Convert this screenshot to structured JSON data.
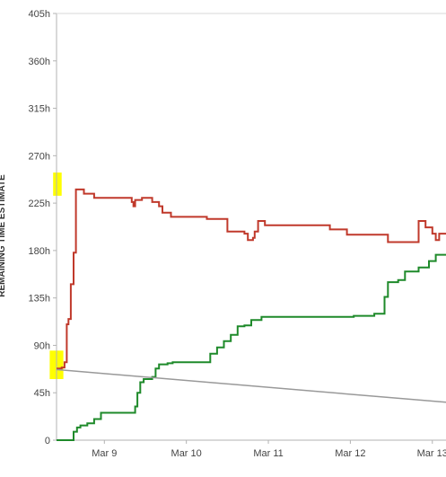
{
  "chart_data": {
    "type": "line",
    "title": "",
    "xlabel": "",
    "ylabel": "REMAINING TIME ESTIMATE",
    "ylim": [
      0,
      405
    ],
    "xlim": [
      "2024-03-08 10:00",
      "2024-03-13 04:00"
    ],
    "y_ticks": [
      0,
      45,
      90,
      135,
      180,
      225,
      270,
      315,
      360,
      405
    ],
    "y_tick_labels": [
      "0",
      "45h",
      "90h",
      "135h",
      "180h",
      "225h",
      "270h",
      "315h",
      "360h",
      "405h"
    ],
    "x_ticks": [
      "2024-03-09 00:00",
      "2024-03-10 00:00",
      "2024-03-11 00:00",
      "2024-03-12 00:00",
      "2024-03-13 00:00"
    ],
    "x_tick_labels": [
      "Mar 9",
      "Mar 10",
      "Mar 11",
      "Mar 12",
      "Mar 13"
    ],
    "grid": false,
    "legend": "none",
    "series": [
      {
        "color": "#c0392b",
        "points": [
          [
            "2024-03-08 10:00",
            68
          ],
          [
            "2024-03-08 11:30",
            69
          ],
          [
            "2024-03-08 12:20",
            74
          ],
          [
            "2024-03-08 13:00",
            110
          ],
          [
            "2024-03-08 13:30",
            115
          ],
          [
            "2024-03-08 14:10",
            148
          ],
          [
            "2024-03-08 15:00",
            178
          ],
          [
            "2024-03-08 15:40",
            238
          ],
          [
            "2024-03-08 18:00",
            234
          ],
          [
            "2024-03-08 21:00",
            230
          ],
          [
            "2024-03-09 07:00",
            230
          ],
          [
            "2024-03-09 08:00",
            226
          ],
          [
            "2024-03-09 08:30",
            222
          ],
          [
            "2024-03-09 09:00",
            228
          ],
          [
            "2024-03-09 11:00",
            230
          ],
          [
            "2024-03-09 14:00",
            226
          ],
          [
            "2024-03-09 16:00",
            222
          ],
          [
            "2024-03-09 17:00",
            216
          ],
          [
            "2024-03-09 19:30",
            212
          ],
          [
            "2024-03-10 01:00",
            212
          ],
          [
            "2024-03-10 06:00",
            210
          ],
          [
            "2024-03-10 12:00",
            198
          ],
          [
            "2024-03-10 17:00",
            196
          ],
          [
            "2024-03-10 18:00",
            190
          ],
          [
            "2024-03-10 19:30",
            192
          ],
          [
            "2024-03-10 20:00",
            198
          ],
          [
            "2024-03-10 21:00",
            208
          ],
          [
            "2024-03-10 23:00",
            204
          ],
          [
            "2024-03-11 12:00",
            204
          ],
          [
            "2024-03-11 18:00",
            200
          ],
          [
            "2024-03-11 23:00",
            195
          ],
          [
            "2024-03-12 09:00",
            195
          ],
          [
            "2024-03-12 11:00",
            188
          ],
          [
            "2024-03-12 19:00",
            188
          ],
          [
            "2024-03-12 20:00",
            208
          ],
          [
            "2024-03-12 22:00",
            202
          ],
          [
            "2024-03-13 00:00",
            196
          ],
          [
            "2024-03-13 01:00",
            190
          ],
          [
            "2024-03-13 02:00",
            196
          ],
          [
            "2024-03-13 04:00",
            196
          ]
        ]
      },
      {
        "color": "#1e8a2a",
        "points": [
          [
            "2024-03-08 10:00",
            0
          ],
          [
            "2024-03-08 14:00",
            0
          ],
          [
            "2024-03-08 15:00",
            8
          ],
          [
            "2024-03-08 16:00",
            12
          ],
          [
            "2024-03-08 17:00",
            14
          ],
          [
            "2024-03-08 19:00",
            16
          ],
          [
            "2024-03-08 21:00",
            20
          ],
          [
            "2024-03-08 23:00",
            26
          ],
          [
            "2024-03-09 08:00",
            26
          ],
          [
            "2024-03-09 09:00",
            32
          ],
          [
            "2024-03-09 09:40",
            45
          ],
          [
            "2024-03-09 10:30",
            55
          ],
          [
            "2024-03-09 11:30",
            58
          ],
          [
            "2024-03-09 14:00",
            60
          ],
          [
            "2024-03-09 15:00",
            68
          ],
          [
            "2024-03-09 16:00",
            72
          ],
          [
            "2024-03-09 18:30",
            73
          ],
          [
            "2024-03-09 20:00",
            74
          ],
          [
            "2024-03-10 06:00",
            74
          ],
          [
            "2024-03-10 07:00",
            82
          ],
          [
            "2024-03-10 09:00",
            88
          ],
          [
            "2024-03-10 11:00",
            94
          ],
          [
            "2024-03-10 13:00",
            100
          ],
          [
            "2024-03-10 15:00",
            108
          ],
          [
            "2024-03-10 17:00",
            109
          ],
          [
            "2024-03-10 19:00",
            114
          ],
          [
            "2024-03-10 22:00",
            117
          ],
          [
            "2024-03-11 06:00",
            117
          ],
          [
            "2024-03-12 01:00",
            118
          ],
          [
            "2024-03-12 07:00",
            120
          ],
          [
            "2024-03-12 10:00",
            136
          ],
          [
            "2024-03-12 11:00",
            150
          ],
          [
            "2024-03-12 14:00",
            152
          ],
          [
            "2024-03-12 16:00",
            160
          ],
          [
            "2024-03-12 20:00",
            164
          ],
          [
            "2024-03-12 23:00",
            170
          ],
          [
            "2024-03-13 01:00",
            176
          ],
          [
            "2024-03-13 04:00",
            176
          ]
        ]
      },
      {
        "color": "#999999",
        "points": [
          [
            "2024-03-08 10:00",
            67
          ],
          [
            "2024-03-13 04:00",
            36
          ]
        ]
      }
    ],
    "highlights": [
      {
        "x": [
          "2024-03-08 09:00",
          "2024-03-08 11:30"
        ],
        "y": [
          232,
          254
        ],
        "color": "#ffff00"
      },
      {
        "x": [
          "2024-03-08 08:00",
          "2024-03-08 12:00"
        ],
        "y": [
          58,
          85
        ],
        "color": "#ffff00"
      }
    ]
  }
}
